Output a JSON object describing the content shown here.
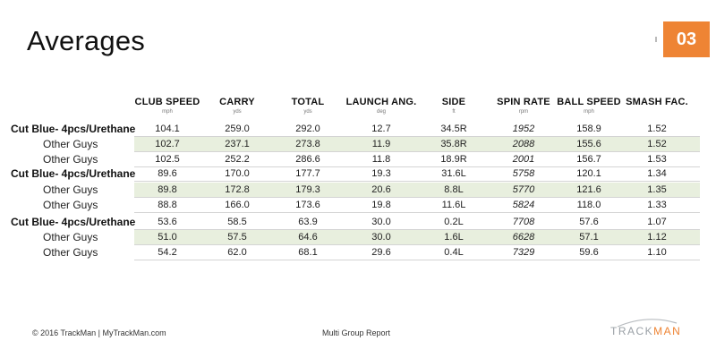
{
  "title": "Averages",
  "page_number": "03",
  "columns": [
    {
      "label": "CLUB SPEED",
      "unit": "mph"
    },
    {
      "label": "CARRY",
      "unit": "yds"
    },
    {
      "label": "TOTAL",
      "unit": "yds"
    },
    {
      "label": "LAUNCH ANG.",
      "unit": "deg"
    },
    {
      "label": "SIDE",
      "unit": "ft"
    },
    {
      "label": "SPIN RATE",
      "unit": "rpm"
    },
    {
      "label": "BALL SPEED",
      "unit": "mph"
    },
    {
      "label": "SMASH FAC.",
      "unit": ""
    }
  ],
  "rows": [
    {
      "label": "Cut Blue- 4pcs/Urethane",
      "group": true,
      "values": [
        "104.1",
        "259.0",
        "292.0",
        "12.7",
        "34.5R",
        "1952",
        "158.9",
        "1.52"
      ]
    },
    {
      "label": "Other Guys",
      "group": false,
      "values": [
        "102.7",
        "237.1",
        "273.8",
        "11.9",
        "35.8R",
        "2088",
        "155.6",
        "1.52"
      ]
    },
    {
      "label": "Other Guys",
      "group": false,
      "values": [
        "102.5",
        "252.2",
        "286.6",
        "11.8",
        "18.9R",
        "2001",
        "156.7",
        "1.53"
      ]
    },
    {
      "label": "Cut Blue- 4pcs/Urethane",
      "group": true,
      "values": [
        "89.6",
        "170.0",
        "177.7",
        "19.3",
        "31.6L",
        "5758",
        "120.1",
        "1.34"
      ]
    },
    {
      "label": "Other Guys",
      "group": false,
      "values": [
        "89.8",
        "172.8",
        "179.3",
        "20.6",
        "8.8L",
        "5770",
        "121.6",
        "1.35"
      ]
    },
    {
      "label": "Other Guys",
      "group": false,
      "values": [
        "88.8",
        "166.0",
        "173.6",
        "19.8",
        "11.6L",
        "5824",
        "118.0",
        "1.33"
      ]
    },
    {
      "label": "Cut Blue- 4pcs/Urethane",
      "group": true,
      "values": [
        "53.6",
        "58.5",
        "63.9",
        "30.0",
        "0.2L",
        "7708",
        "57.6",
        "1.07"
      ]
    },
    {
      "label": "Other Guys",
      "group": false,
      "values": [
        "51.0",
        "57.5",
        "64.6",
        "30.0",
        "1.6L",
        "6628",
        "57.1",
        "1.12"
      ]
    },
    {
      "label": "Other Guys",
      "group": false,
      "values": [
        "54.2",
        "62.0",
        "68.1",
        "29.6",
        "0.4L",
        "7329",
        "59.6",
        "1.10"
      ]
    }
  ],
  "footer": {
    "left": "© 2016 TrackMan | MyTrackMan.com",
    "center": "Multi Group Report",
    "logo_part1": "TRACK",
    "logo_part2": "MAN"
  },
  "colors": {
    "accent": "#ee8434",
    "row_shade": "#e8efde"
  }
}
